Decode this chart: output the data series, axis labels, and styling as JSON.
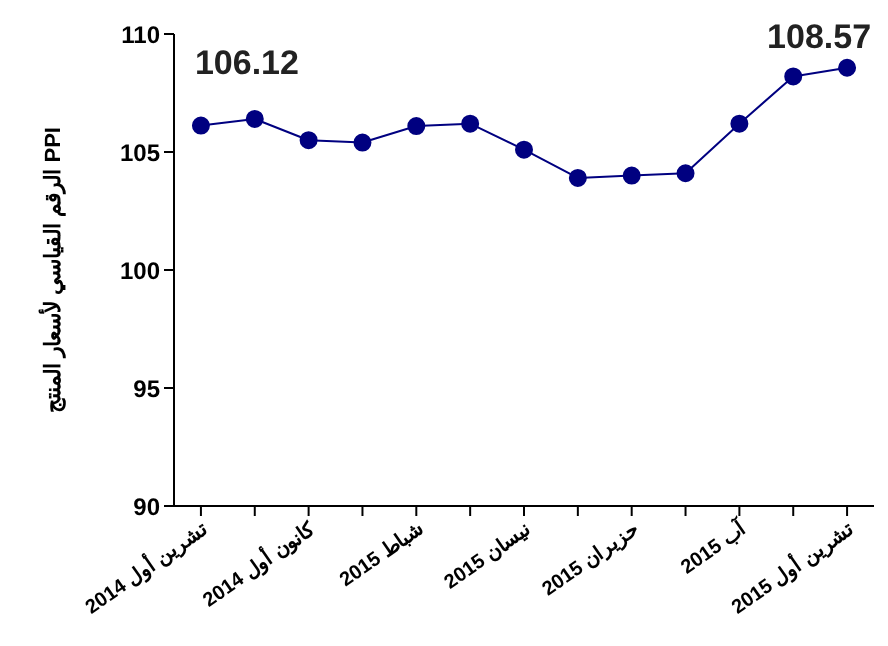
{
  "chart_data": {
    "type": "line",
    "ylabel": "الرقم القياسي لأسعار المنتج PPI",
    "categories": [
      "تشرين أول 2014",
      null,
      "كانون أول 2014",
      null,
      "شباط 2015",
      null,
      "نيسان 2015",
      null,
      "حزيران 2015",
      null,
      "آب 2015",
      null,
      "تشرين أول 2015"
    ],
    "series": [
      {
        "color": "#000080",
        "values": [
          106.12,
          106.4,
          105.5,
          105.4,
          106.1,
          106.2,
          105.1,
          103.9,
          104.0,
          104.1,
          106.2,
          108.2,
          108.57
        ],
        "value_labels": [
          "106.12",
          null,
          null,
          null,
          null,
          null,
          null,
          null,
          null,
          null,
          null,
          null,
          "108.57"
        ]
      }
    ],
    "ylim": [
      90,
      110
    ],
    "yticks": [
      90,
      95,
      100,
      105,
      110
    ],
    "grid": false,
    "legend": false,
    "marker": "circle",
    "line_style": "solid"
  }
}
